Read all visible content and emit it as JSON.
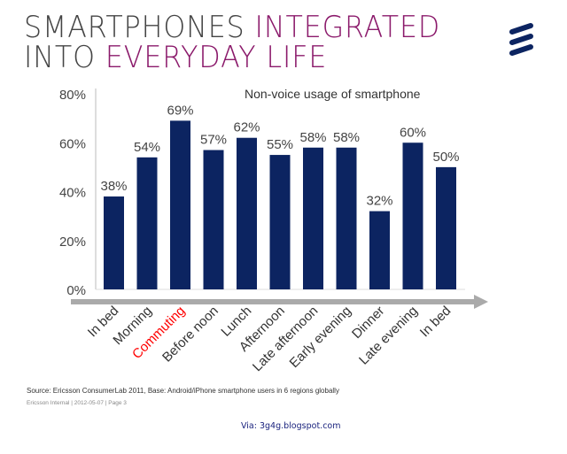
{
  "header": {
    "title_line1_a": "SMARTPHONES ",
    "title_line1_b": "INTEGRATED",
    "title_line2_a": "INTO ",
    "title_line2_b": "EVERYDAY LIFE",
    "logo": "ericsson-logo",
    "accent_color": "#8b1a6b"
  },
  "chart_data": {
    "type": "bar",
    "title": "Non-voice usage of smartphone",
    "categories": [
      "In bed",
      "Morning",
      "Commuting",
      "Before noon",
      "Lunch",
      "Afternoon",
      "Late afternoon",
      "Early evening",
      "Dinner",
      "Late evening",
      "In bed"
    ],
    "values": [
      38,
      54,
      69,
      57,
      62,
      55,
      58,
      58,
      32,
      60,
      50
    ],
    "data_labels": [
      "38%",
      "54%",
      "69%",
      "57%",
      "62%",
      "55%",
      "58%",
      "58%",
      "32%",
      "60%",
      "50%"
    ],
    "highlighted_category": "Commuting",
    "highlight_color": "#ff0000",
    "bar_color": "#0c2461",
    "ylim": [
      0,
      80
    ],
    "yticks": [
      "0%",
      "20%",
      "40%",
      "60%",
      "80%"
    ],
    "xlabel": "",
    "ylabel": "",
    "grid": false
  },
  "footer": {
    "source": "Source: Ericsson ConsumerLab 2011, Base: Android/iPhone smartphone users in 6 regions globally",
    "internal": "Ericsson Internal  |  2012-05-07  |  Page 3",
    "via": "Via: 3g4g.blogspot.com"
  }
}
